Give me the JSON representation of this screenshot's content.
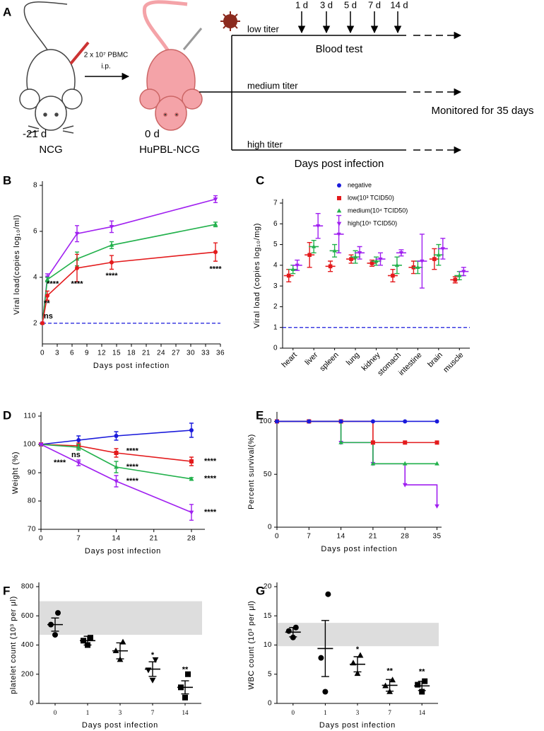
{
  "panels": [
    "A",
    "B",
    "C",
    "D",
    "E",
    "F",
    "G"
  ],
  "diagram": {
    "left_time": "-21 d",
    "left_label": "NCG",
    "right_time": "0 d",
    "right_label": "HuPBL-NCG",
    "injection": [
      "2 x 10⁷ PBMC",
      "i.p."
    ],
    "groups": [
      "low titer",
      "medium titer",
      "high titer"
    ],
    "blood_test": "Blood test",
    "timepoints": [
      "1 d",
      "3 d",
      "5 d",
      "7 d",
      "14 d"
    ],
    "monitor": "Monitored for 35 days",
    "x_label": "Days post infection"
  },
  "chart_data": [
    {
      "type": "line",
      "ylabel": "Viral load(copies log₁₀/ml)",
      "xlabel": "Days post infection",
      "x": [
        0,
        1,
        7,
        14,
        35
      ],
      "xlim": [
        0,
        36
      ],
      "xticks": [
        0,
        3,
        6,
        9,
        12,
        15,
        18,
        21,
        24,
        27,
        30,
        33,
        36
      ],
      "ylim": [
        1.1,
        8
      ],
      "yticks": [
        2,
        4,
        6,
        8
      ],
      "reference_line": {
        "value": 2,
        "color": "#1a1adb"
      },
      "series": [
        {
          "color": "#a020f0",
          "marker": "triangle-down",
          "values": [
            2,
            4.0,
            5.9,
            6.2,
            7.4
          ],
          "errors": [
            0,
            0.15,
            0.35,
            0.25,
            0.15
          ]
        },
        {
          "color": "#22b14c",
          "marker": "triangle",
          "values": [
            2,
            3.9,
            4.8,
            5.4,
            6.3
          ],
          "errors": [
            0,
            0.1,
            0.3,
            0.15,
            0.1
          ]
        },
        {
          "color": "#e31a1c",
          "marker": "circle",
          "values": [
            2,
            3.2,
            4.4,
            4.65,
            5.1
          ],
          "errors": [
            0,
            0.2,
            0.6,
            0.3,
            0.4
          ]
        }
      ],
      "annotations": [
        {
          "text": "ns"
        },
        {
          "text": "**"
        },
        {
          "text": "****"
        },
        {
          "text": "****"
        },
        {
          "text": "****"
        },
        {
          "text": "****"
        }
      ]
    },
    {
      "type": "strip",
      "ylabel": "Viral load (copies log₁₀/mg)",
      "categories": [
        "heart",
        "liver",
        "spleen",
        "lung",
        "kidney",
        "stomach",
        "intestine",
        "brain",
        "muscle"
      ],
      "ylim": [
        0,
        7
      ],
      "yticks": [
        0,
        1,
        2,
        3,
        4,
        5,
        6,
        7
      ],
      "legend": true,
      "reference_line": {
        "name": "negative",
        "value": 1,
        "color": "#1a1adb"
      },
      "series": [
        {
          "name": "low(10³ TCID50)",
          "color": "#e31a1c",
          "marker": "square",
          "values": [
            3.5,
            4.5,
            3.95,
            4.3,
            4.1,
            3.5,
            3.9,
            4.3,
            3.3
          ],
          "errors": [
            0.3,
            0.6,
            0.25,
            0.2,
            0.15,
            0.3,
            0.3,
            0.5,
            0.15
          ]
        },
        {
          "name": "medium(10⁴ TCID50)",
          "color": "#22b14c",
          "marker": "triangle",
          "values": [
            3.8,
            4.9,
            4.7,
            4.4,
            4.2,
            4.0,
            3.9,
            4.5,
            3.5
          ],
          "errors": [
            0.2,
            0.3,
            0.3,
            0.3,
            0.2,
            0.4,
            0.3,
            0.5,
            0.2
          ]
        },
        {
          "name": "high(10⁵ TCID50)",
          "color": "#a020f0",
          "marker": "triangle-down",
          "values": [
            4.0,
            5.9,
            5.5,
            4.6,
            4.3,
            4.6,
            4.2,
            4.8,
            3.7
          ],
          "errors": [
            0.25,
            0.6,
            0.9,
            0.3,
            0.3,
            0.15,
            1.3,
            0.5,
            0.2
          ]
        }
      ]
    },
    {
      "type": "line",
      "ylabel": "Weight (%)",
      "xlabel": "Days post infection",
      "x": [
        0,
        7,
        14,
        28
      ],
      "xlim": [
        0,
        30.5
      ],
      "xticks": [
        0,
        7,
        14,
        21,
        28
      ],
      "ylim": [
        70,
        110
      ],
      "yticks": [
        70,
        80,
        90,
        100,
        110
      ],
      "series": [
        {
          "color": "#1a1adb",
          "marker": "circle",
          "values": [
            100,
            101.5,
            103,
            105
          ],
          "errors": [
            0,
            1.5,
            1.5,
            2.5
          ]
        },
        {
          "color": "#e31a1c",
          "marker": "square",
          "values": [
            100,
            99.5,
            97,
            94
          ],
          "errors": [
            0,
            1,
            1.5,
            1.5
          ]
        },
        {
          "color": "#22b14c",
          "marker": "triangle",
          "values": [
            100,
            99,
            92,
            87.8
          ],
          "errors": [
            0,
            1,
            2,
            0.5
          ]
        },
        {
          "color": "#a020f0",
          "marker": "triangle-down",
          "values": [
            100,
            93.5,
            87,
            76
          ],
          "errors": [
            0,
            1,
            2,
            2.8
          ]
        }
      ],
      "annotations": [
        {
          "text": "ns",
          "color": "#000000"
        },
        {
          "text": "****",
          "color": "#a020f0"
        },
        {
          "text": "****",
          "color": "#e31a1c"
        },
        {
          "text": "****",
          "color": "#22b14c"
        },
        {
          "text": "****",
          "color": "#a020f0"
        },
        {
          "text": "****",
          "color": "#e31a1c"
        },
        {
          "text": "****",
          "color": "#22b14c"
        },
        {
          "text": "****",
          "color": "#a020f0"
        }
      ]
    },
    {
      "type": "line",
      "drawstyle": "steps-post",
      "ylabel": "Percent survival(%)",
      "xlabel": "Days post infection",
      "x": [
        0,
        7,
        14,
        21,
        28,
        35
      ],
      "xlim": [
        0,
        36
      ],
      "xticks": [
        0,
        7,
        14,
        21,
        28,
        35
      ],
      "ylim": [
        0,
        105
      ],
      "yticks": [
        0,
        50,
        100
      ],
      "series": [
        {
          "color": "#a020f0",
          "marker": "triangle-down",
          "values": [
            100,
            100,
            80,
            60,
            40,
            20
          ]
        },
        {
          "color": "#22b14c",
          "marker": "triangle",
          "values": [
            100,
            100,
            80,
            60,
            60,
            60
          ]
        },
        {
          "color": "#e31a1c",
          "marker": "square",
          "values": [
            100,
            100,
            100,
            80,
            80,
            80
          ]
        },
        {
          "color": "#1a1adb",
          "marker": "circle",
          "values": [
            100,
            100,
            100,
            100,
            100,
            100
          ]
        }
      ]
    },
    {
      "type": "strip",
      "ylabel": "platelet count (10³ per μl)",
      "xlabel": "Days post infection",
      "categories": [
        "0",
        "1",
        "3",
        "7",
        "14"
      ],
      "ylim": [
        0,
        800
      ],
      "yticks": [
        0,
        200,
        400,
        600,
        800
      ],
      "normal_range": [
        470,
        700
      ],
      "normal_range_color": "#dddddd",
      "markers": [
        "circle",
        "square",
        "triangle",
        "triangle-down",
        "square"
      ],
      "series": [
        {
          "color": "#000000",
          "values": [
            540,
            430,
            360,
            235,
            110
          ],
          "errors": [
            45,
            30,
            55,
            50,
            45
          ],
          "points": [
            [
              620,
              540,
              470
            ],
            [
              450,
              430,
              400
            ],
            [
              420,
              360,
              300
            ],
            [
              300,
              230,
              160
            ],
            [
              200,
              110,
              40
            ]
          ]
        }
      ],
      "annotations": [
        {
          "text": "*"
        },
        {
          "text": "**"
        }
      ]
    },
    {
      "type": "strip",
      "ylabel": "WBC count (10³ per μl)",
      "xlabel": "Days post infection",
      "categories": [
        "0",
        "1",
        "3",
        "7",
        "14"
      ],
      "ylim": [
        0,
        20
      ],
      "yticks": [
        0,
        5,
        10,
        15,
        20
      ],
      "normal_range": [
        9.8,
        13.8
      ],
      "normal_range_color": "#dddddd",
      "markers": [
        "circle",
        "circle",
        "triangle",
        "triangle",
        "square"
      ],
      "series": [
        {
          "color": "#000000",
          "values": [
            12.2,
            9.4,
            6.7,
            3.1,
            3.0
          ],
          "errors": [
            0.8,
            4.8,
            1.3,
            1.0,
            0.8
          ],
          "points": [
            [
              13.0,
              12.4,
              11.3
            ],
            [
              18.7,
              7.8,
              2.0
            ],
            [
              8.2,
              6.9,
              5.1
            ],
            [
              4.0,
              3.0,
              2.0
            ],
            [
              3.8,
              3.2,
              2.0
            ]
          ]
        }
      ],
      "annotations": [
        {
          "text": "*"
        },
        {
          "text": "**"
        },
        {
          "text": "**"
        }
      ]
    }
  ]
}
